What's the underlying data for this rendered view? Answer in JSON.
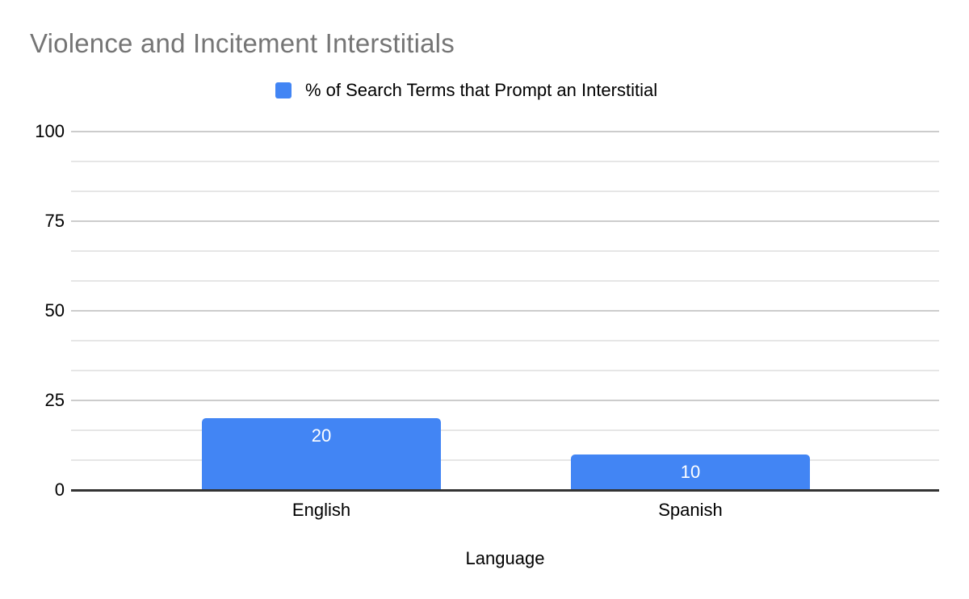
{
  "chart_data": {
    "type": "bar",
    "title": "Violence and Incitement Interstitials",
    "categories": [
      "English",
      "Spanish"
    ],
    "series": [
      {
        "name": "% of Search Terms that Prompt an Interstitial",
        "values": [
          20,
          10
        ]
      }
    ],
    "data_labels": [
      "20",
      "10"
    ],
    "xlabel": "Language",
    "ylabel": "",
    "ylim": [
      0,
      100
    ],
    "yticks": [
      0,
      25,
      50,
      75,
      100
    ],
    "minor_divisions_per_major": 3,
    "grid": true,
    "legend_position": "top",
    "colors": {
      "series": "#4285f4",
      "title_text": "#757575",
      "text": "#000000",
      "data_label_text": "#ffffff",
      "major_gridline": "#cccccc",
      "minor_gridline": "#e6e6e6",
      "axis_line": "#333333",
      "background": "#ffffff"
    }
  }
}
